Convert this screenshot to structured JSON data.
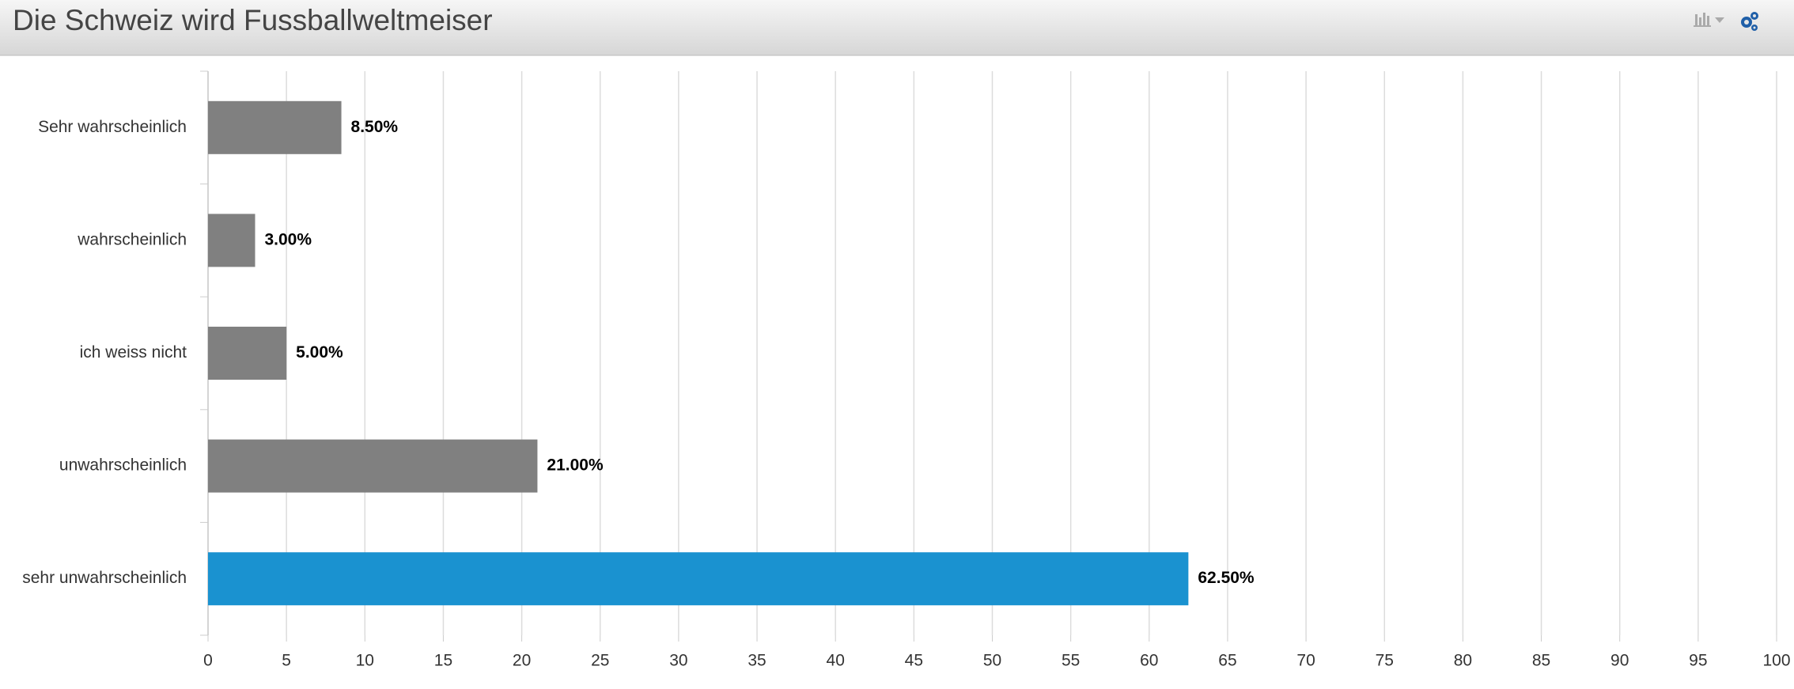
{
  "chart_data": {
    "type": "bar",
    "orientation": "horizontal",
    "title": "Die Schweiz wird Fussballweltmeiser",
    "categories": [
      "Sehr wahrscheinlich",
      "wahrscheinlich",
      "ich weiss nicht",
      "unwahrscheinlich",
      "sehr unwahrscheinlich"
    ],
    "values": [
      8.5,
      3,
      5,
      21,
      62.5
    ],
    "value_labels": [
      "8.50%",
      "3.00%",
      "5.00%",
      "21.00%",
      "62.50%"
    ],
    "colors": [
      "#808080",
      "#808080",
      "#808080",
      "#808080",
      "#1a92d0"
    ],
    "xlim": [
      0,
      100
    ],
    "xticks": [
      0,
      5,
      10,
      15,
      20,
      25,
      30,
      35,
      40,
      45,
      50,
      55,
      60,
      65,
      70,
      75,
      80,
      85,
      90,
      95,
      100
    ],
    "grid": true
  }
}
